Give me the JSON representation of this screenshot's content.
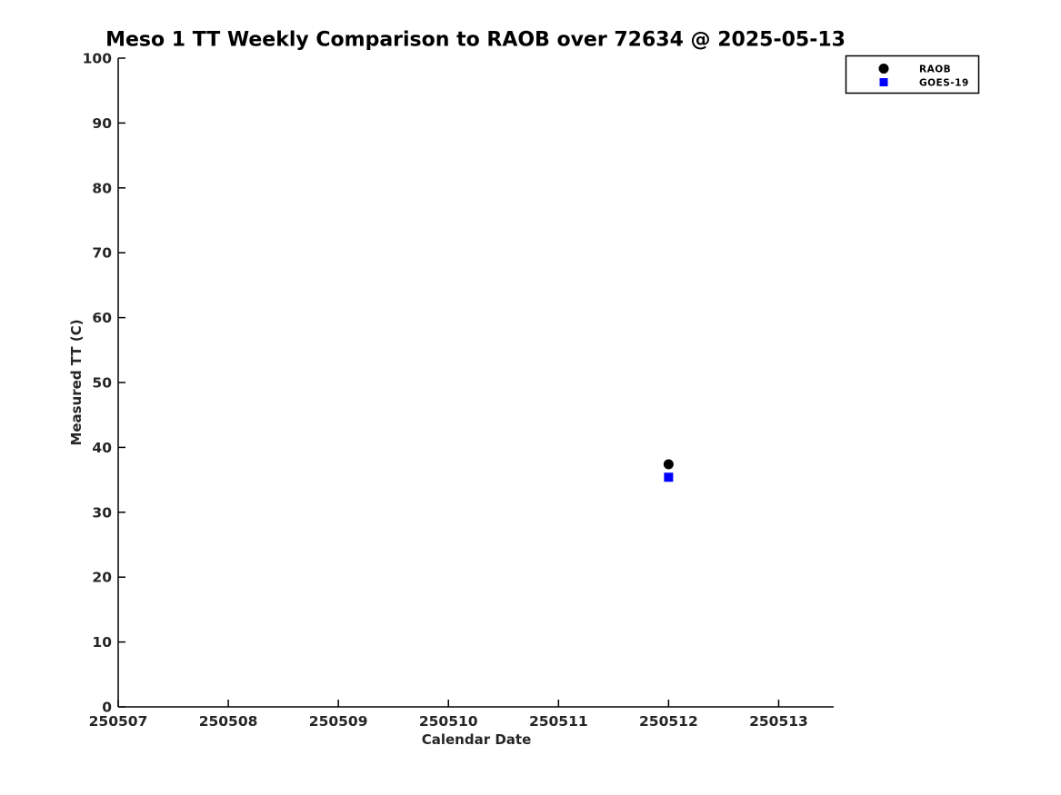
{
  "chart_data": {
    "type": "scatter",
    "title": "Meso 1 TT Weekly Comparison to RAOB over 72634 @ 2025-05-13",
    "xlabel": "Calendar Date",
    "ylabel": "Measured TT (C)",
    "xlim": [
      250507,
      250513.5
    ],
    "ylim": [
      0,
      100
    ],
    "x_ticks": [
      250507,
      250508,
      250509,
      250510,
      250511,
      250512,
      250513
    ],
    "x_tick_labels": [
      "250507",
      "250508",
      "250509",
      "250510",
      "250511",
      "250512",
      "250513"
    ],
    "y_ticks": [
      0,
      10,
      20,
      30,
      40,
      50,
      60,
      70,
      80,
      90,
      100
    ],
    "y_tick_labels": [
      "0",
      "10",
      "20",
      "30",
      "40",
      "50",
      "60",
      "70",
      "80",
      "90",
      "100"
    ],
    "grid": false,
    "legend": {
      "position": "top-right",
      "entries": [
        {
          "label": "RAOB",
          "marker": "circle",
          "color": "#000000"
        },
        {
          "label": "GOES-19",
          "marker": "square",
          "color": "#0000ff"
        }
      ]
    },
    "series": [
      {
        "name": "RAOB",
        "marker": "circle",
        "color": "#000000",
        "points": [
          {
            "x": 250512,
            "y": 37.4
          }
        ]
      },
      {
        "name": "GOES-19",
        "marker": "square",
        "color": "#0000ff",
        "points": [
          {
            "x": 250512,
            "y": 35.4
          }
        ]
      }
    ],
    "colors": {
      "axis": "#000000",
      "background": "#ffffff",
      "raob": "#000000",
      "goes19": "#0000ff"
    }
  }
}
